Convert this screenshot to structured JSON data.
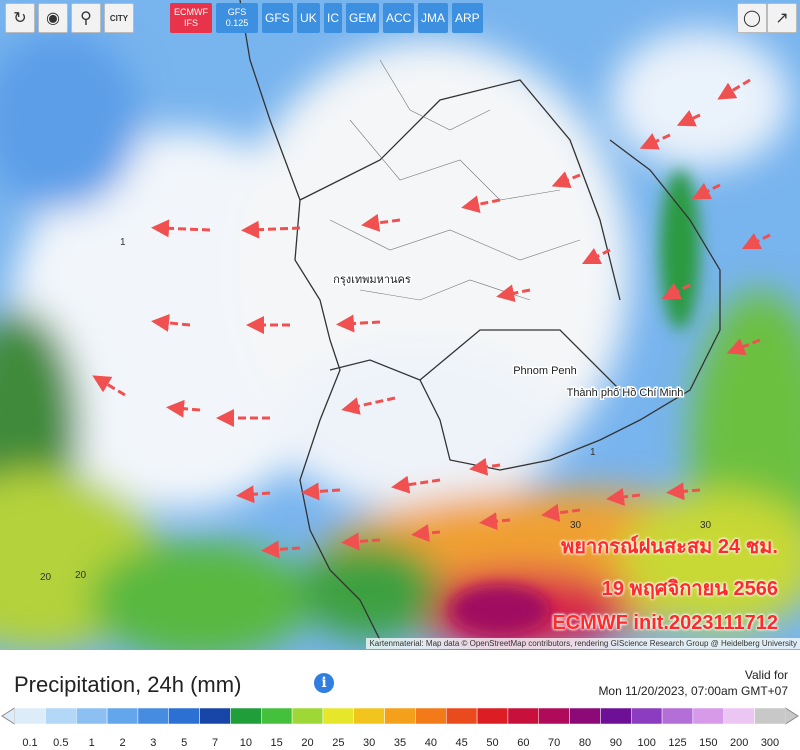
{
  "toolbar": {
    "city": "CITY",
    "models": [
      {
        "label": "ECMWF IFS",
        "active": true
      },
      {
        "label": "GFS 0.125",
        "active": false
      },
      {
        "label": "GFS",
        "active": false
      },
      {
        "label": "UK",
        "active": false
      },
      {
        "label": "IC",
        "active": false
      },
      {
        "label": "GEM",
        "active": false
      },
      {
        "label": "ACC",
        "active": false
      },
      {
        "label": "JMA",
        "active": false
      },
      {
        "label": "ARP",
        "active": false
      }
    ]
  },
  "map": {
    "places": [
      "กรุงเทพมหานคร",
      "Phnom Penh",
      "Thành phố Hồ Chí Minh"
    ],
    "overlay": [
      "พยากรณ์ฝนสะสม 24 ชม.",
      "19 พฤศจิกายน 2566",
      "ECMWF init.2023111712"
    ],
    "attribution": "Kartenmaterial: Map data © OpenStreetMap contributors, rendering GIScience Research Group @ Heidelberg University"
  },
  "footer": {
    "title": "Precipitation, 24h (mm)",
    "valid_label": "Valid for",
    "valid_time": "Mon 11/20/2023, 07:00am GMT+07"
  },
  "scale": [
    {
      "value": 0.1,
      "color": "#dcecf8"
    },
    {
      "value": 0.5,
      "color": "#b3d7f7"
    },
    {
      "value": 1,
      "color": "#8cc0f2"
    },
    {
      "value": 2,
      "color": "#64a6ec"
    },
    {
      "value": 3,
      "color": "#468de2"
    },
    {
      "value": 5,
      "color": "#2b70d2"
    },
    {
      "value": 7,
      "color": "#1846a8"
    },
    {
      "value": 10,
      "color": "#1f9e3a"
    },
    {
      "value": 15,
      "color": "#45c03c"
    },
    {
      "value": 20,
      "color": "#9ed836"
    },
    {
      "value": 25,
      "color": "#e6e62a"
    },
    {
      "value": 30,
      "color": "#f2c51e"
    },
    {
      "value": 35,
      "color": "#f5a01a"
    },
    {
      "value": 40,
      "color": "#f27a18"
    },
    {
      "value": 45,
      "color": "#ea4b1c"
    },
    {
      "value": 50,
      "color": "#dc1e24"
    },
    {
      "value": 60,
      "color": "#c8103c"
    },
    {
      "value": 70,
      "color": "#b00a5a"
    },
    {
      "value": 80,
      "color": "#8c0a78"
    },
    {
      "value": 90,
      "color": "#6e1096"
    },
    {
      "value": 100,
      "color": "#8c3cc0"
    },
    {
      "value": 125,
      "color": "#b46ed8"
    },
    {
      "value": 150,
      "color": "#d69ae8"
    },
    {
      "value": 200,
      "color": "#ecc6f2"
    },
    {
      "value": 300,
      "color": "#c8c8c8"
    }
  ]
}
